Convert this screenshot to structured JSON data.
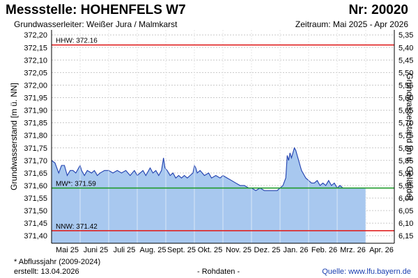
{
  "header": {
    "station": "Messstelle: HOHENFELS W7",
    "number": "Nr: 20020",
    "aquifer": "Grundwasserleiter:   Weißer Jura / Malmkarst",
    "period": "Zeitraum: Mai 2025 - Apr 2026"
  },
  "footer": {
    "note": "* Abflussjahr (2009-2024)",
    "created": "erstellt:  13.04.2026",
    "raw": "- Rohdaten -",
    "source": "Quelle: www.lfu.bayern.de"
  },
  "colors": {
    "area_fill": "#a8c8ef",
    "line": "#1f3fae",
    "mw": "#1e9a2a",
    "hhw_nnw": "#e02020",
    "grid": "#c8c8c8"
  },
  "chart_data": {
    "type": "area",
    "ylabel_left": "Grundwasserstand [m ü. NN]",
    "ylabel_right": "Grundwasserstand [m u. Gelände]",
    "ylim": [
      371.37,
      372.22
    ],
    "y_ticks": [
      "372,20",
      "372,15",
      "372,10",
      "372,05",
      "372,00",
      "371,95",
      "371,90",
      "371,85",
      "371,80",
      "371,75",
      "371,70",
      "371,65",
      "371,60",
      "371,55",
      "371,50",
      "371,45",
      "371,40"
    ],
    "y_ticks_right": [
      "5,35",
      "5,40",
      "5,45",
      "5,50",
      "5,55",
      "5,60",
      "5,65",
      "5,70",
      "5,75",
      "5,80",
      "5,85",
      "5,90",
      "5,95",
      "6,00",
      "6,05",
      "6,10",
      "6,15"
    ],
    "x_ticks": [
      "Mai 25",
      "Juni 25",
      "Juli 25",
      "Aug. 25",
      "Sept. 25",
      "Okt. 25",
      "Nov. 25",
      "Dez. 25",
      "Jan. 26",
      "Feb. 26",
      "Mrz. 26",
      "Apr. 26"
    ],
    "grid": true,
    "reference_lines": [
      {
        "label": "HHW: 372.16",
        "value": 372.16,
        "color": "#e02020"
      },
      {
        "label": "MW*: 371.59",
        "value": 371.59,
        "color": "#1e9a2a"
      },
      {
        "label": "NNW: 371.42",
        "value": 371.42,
        "color": "#e02020"
      }
    ],
    "series": [
      {
        "x": [
          0,
          0.12,
          0.25,
          0.35,
          0.45,
          0.55,
          0.65,
          0.75,
          0.85,
          1.0,
          1.05,
          1.15,
          1.25,
          1.4,
          1.5,
          1.6,
          1.7,
          1.85,
          2.0,
          2.15,
          2.3,
          2.45,
          2.6,
          2.75,
          2.9,
          3.0,
          3.1,
          3.2,
          3.3,
          3.45,
          3.55,
          3.65,
          3.75,
          3.85,
          3.92,
          3.97,
          4.05,
          4.15,
          4.25,
          4.35,
          4.45,
          4.55,
          4.65,
          4.75,
          4.85,
          4.95,
          5.0,
          5.05,
          5.1,
          5.2,
          5.35,
          5.5,
          5.6,
          5.75,
          5.9,
          6.0,
          6.15,
          6.3,
          6.45,
          6.6,
          6.75,
          6.9,
          7.0,
          7.15,
          7.3,
          7.45,
          7.6,
          7.75,
          7.9,
          8.0,
          8.1,
          8.2,
          8.25,
          8.3,
          8.35,
          8.4,
          8.5,
          8.55,
          8.6,
          8.65,
          8.7,
          8.75,
          8.8,
          8.9,
          9.0,
          9.1,
          9.2,
          9.3,
          9.4,
          9.5,
          9.6,
          9.7,
          9.8,
          9.9,
          10.0,
          10.1,
          10.2,
          10.3,
          10.4,
          10.5,
          10.6,
          10.7,
          10.8,
          10.9,
          11.0
        ],
        "values": [
          371.7,
          371.69,
          371.65,
          371.68,
          371.68,
          371.64,
          371.66,
          371.66,
          371.65,
          371.68,
          371.66,
          371.64,
          371.66,
          371.65,
          371.66,
          371.64,
          371.65,
          371.66,
          371.66,
          371.65,
          371.66,
          371.65,
          371.66,
          371.64,
          371.66,
          371.64,
          371.65,
          371.66,
          371.64,
          371.67,
          371.65,
          371.66,
          371.64,
          371.66,
          371.71,
          371.67,
          371.66,
          371.64,
          371.65,
          371.63,
          371.64,
          371.63,
          371.64,
          371.63,
          371.64,
          371.65,
          371.68,
          371.67,
          371.65,
          371.66,
          371.64,
          371.65,
          371.63,
          371.64,
          371.63,
          371.64,
          371.63,
          371.62,
          371.61,
          371.6,
          371.6,
          371.59,
          371.59,
          371.58,
          371.59,
          371.58,
          371.58,
          371.58,
          371.58,
          371.59,
          371.6,
          371.63,
          371.72,
          371.7,
          371.73,
          371.71,
          371.75,
          371.74,
          371.72,
          371.7,
          371.68,
          371.66,
          371.65,
          371.63,
          371.62,
          371.61,
          371.61,
          371.62,
          371.6,
          371.61,
          371.6,
          371.62,
          371.6,
          371.61,
          371.59,
          371.6,
          371.59,
          371.59,
          371.59,
          371.59,
          371.59,
          371.59,
          371.59,
          371.59,
          371.59
        ]
      }
    ]
  }
}
